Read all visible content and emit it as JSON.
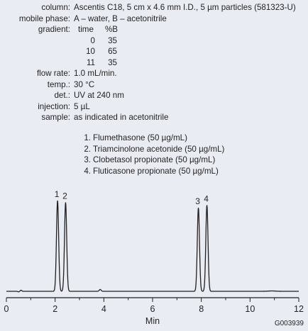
{
  "conditions": [
    {
      "label": "column:",
      "value": "Ascentis C18, 5 cm x 4.6 mm I.D., 5 µm particles (581323-U)"
    },
    {
      "label": "mobile phase:",
      "value": "A – water, B – acetonitrile"
    },
    {
      "label": "gradient:",
      "value": ""
    }
  ],
  "gradient": {
    "headers": {
      "time": "time",
      "b": "%B"
    },
    "rows": [
      {
        "time": "0",
        "b": "35"
      },
      {
        "time": "10",
        "b": "65"
      },
      {
        "time": "11",
        "b": "35"
      }
    ]
  },
  "conditions_after": [
    {
      "label": "flow rate:",
      "value": "1.0 mL/min."
    },
    {
      "label": "temp.:",
      "value": "30 °C"
    },
    {
      "label": "det.:",
      "value": "UV at 240 nm"
    },
    {
      "label": "injection:",
      "value": "5 µL"
    },
    {
      "label": "sample:",
      "value": "as indicated in acetonitrile"
    }
  ],
  "peaks": [
    {
      "num": "1.",
      "name": "Flumethasone (50 µg/mL)"
    },
    {
      "num": "2.",
      "name": "Triamcinolone acetonide (50 µg/mL)"
    },
    {
      "num": "3.",
      "name": "Clobetasol propionate (50 µg/mL)"
    },
    {
      "num": "4.",
      "name": "Fluticasone propionate (50 µg/mL)"
    }
  ],
  "chart_data": {
    "type": "line",
    "title": "",
    "xlabel": "Min",
    "ylabel": "",
    "xlim": [
      0,
      12
    ],
    "xticks": [
      "0",
      "2",
      "4",
      "6",
      "8",
      "10",
      "12"
    ],
    "grid": false,
    "peaks": [
      {
        "label": "1",
        "x": 2.1,
        "height": 1.0
      },
      {
        "label": "2",
        "x": 2.43,
        "height": 0.98
      },
      {
        "label": "3",
        "x": 7.88,
        "height": 0.92
      },
      {
        "label": "4",
        "x": 8.23,
        "height": 0.95
      }
    ],
    "line_color": "#231f20"
  },
  "figure_code": "G003939"
}
